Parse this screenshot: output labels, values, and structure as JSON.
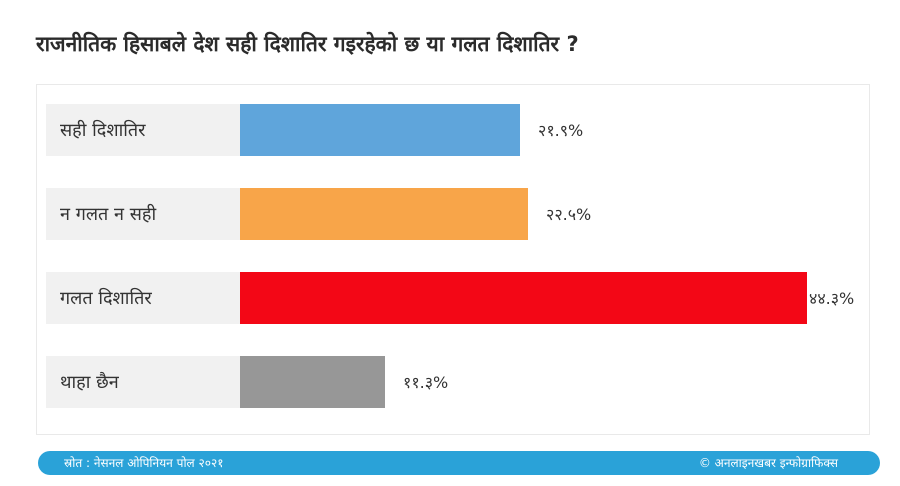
{
  "title": "राजनीतिक हिसाबले देश सही दिशातिर गइरहेको छ या गलत दिशातिर ?",
  "chart_data": {
    "type": "bar",
    "orientation": "horizontal",
    "categories": [
      "सही दिशातिर",
      "न गलत न सही",
      "गलत दिशातिर",
      "थाहा छैन"
    ],
    "values": [
      21.9,
      22.5,
      44.3,
      11.3
    ],
    "value_labels": [
      "२१.९%",
      "२२.५%",
      "४४.३%",
      "११.३%"
    ],
    "colors": [
      "#5fa5db",
      "#f8a549",
      "#f30716",
      "#979797"
    ],
    "xlim": [
      0,
      44.3
    ]
  },
  "footer": {
    "source": "स्रोत : नेसनल ओपिनियन पोल २०२१",
    "credit": "© अनलाइनखबर इन्फोग्राफिक्स"
  }
}
